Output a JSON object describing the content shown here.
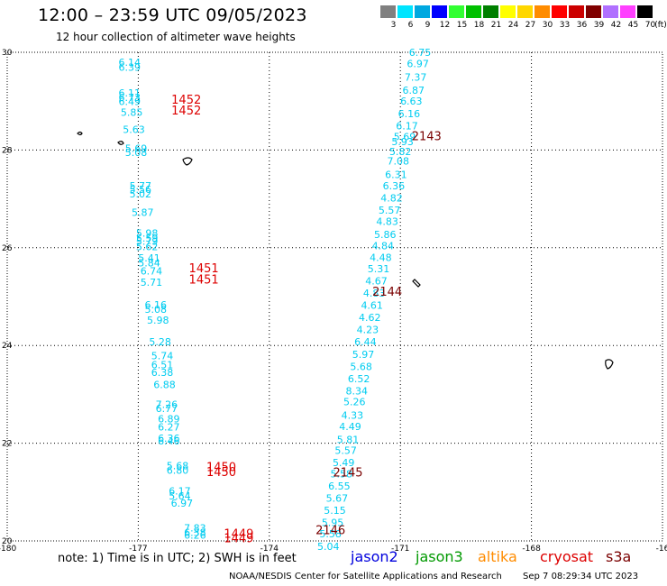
{
  "header": {
    "title": "12:00 – 23:59 UTC 09/05/2023",
    "subtitle": "12 hour collection of altimeter wave heights"
  },
  "colorbar": {
    "unit": "(ft)",
    "swatches": [
      {
        "color": "#808080",
        "label": "3"
      },
      {
        "color": "#00e5ff",
        "label": "6"
      },
      {
        "color": "#00a8e0",
        "label": "9"
      },
      {
        "color": "#0000ff",
        "label": "12"
      },
      {
        "color": "#32ff32",
        "label": "15"
      },
      {
        "color": "#00c000",
        "label": "18"
      },
      {
        "color": "#008000",
        "label": "21"
      },
      {
        "color": "#ffff00",
        "label": "24"
      },
      {
        "color": "#ffd700",
        "label": "27"
      },
      {
        "color": "#ff8c00",
        "label": "30"
      },
      {
        "color": "#ff0000",
        "label": "33"
      },
      {
        "color": "#cc0000",
        "label": "36"
      },
      {
        "color": "#800000",
        "label": "39"
      },
      {
        "color": "#b070ff",
        "label": "42"
      },
      {
        "color": "#ff40ff",
        "label": "45"
      },
      {
        "color": "#000000",
        "label": "70"
      }
    ]
  },
  "map": {
    "lon_ticks": [
      {
        "value": -180,
        "label": "-180"
      },
      {
        "value": -177,
        "label": "-177"
      },
      {
        "value": -174,
        "label": "-174"
      },
      {
        "value": -171,
        "label": "-171"
      },
      {
        "value": -168,
        "label": "-168"
      },
      {
        "value": -165,
        "label": "-16"
      }
    ],
    "lat_ticks": [
      {
        "value": 30,
        "label": "30"
      },
      {
        "value": 28,
        "label": "28"
      },
      {
        "value": 26,
        "label": "26"
      },
      {
        "value": 24,
        "label": "24"
      },
      {
        "value": 22,
        "label": "22"
      },
      {
        "value": 20,
        "label": "20"
      }
    ],
    "wave_color": "#00ccf0",
    "track_labels": [
      {
        "text": "1452",
        "lon": -175.9,
        "lat": 28.95,
        "color": "#dd0000"
      },
      {
        "text": "1452",
        "lon": -175.9,
        "lat": 28.73,
        "color": "#dd0000"
      },
      {
        "text": "1451",
        "lon": -175.5,
        "lat": 25.5,
        "color": "#dd0000"
      },
      {
        "text": "1451",
        "lon": -175.5,
        "lat": 25.27,
        "color": "#dd0000"
      },
      {
        "text": "1450",
        "lon": -175.1,
        "lat": 21.43,
        "color": "#dd0000"
      },
      {
        "text": "1450",
        "lon": -175.1,
        "lat": 21.33,
        "color": "#dd0000"
      },
      {
        "text": "1449",
        "lon": -174.7,
        "lat": 20.06,
        "color": "#dd0000"
      },
      {
        "text": "1449",
        "lon": -174.7,
        "lat": 19.97,
        "color": "#dd0000"
      },
      {
        "text": "2143",
        "lon": -170.4,
        "lat": 28.2,
        "color": "#7a0000"
      },
      {
        "text": "2144",
        "lon": -171.3,
        "lat": 25.02,
        "color": "#7a0000"
      },
      {
        "text": "2145",
        "lon": -172.2,
        "lat": 21.32,
        "color": "#7a0000"
      },
      {
        "text": "2146",
        "lon": -172.6,
        "lat": 20.14,
        "color": "#7a0000"
      }
    ],
    "wave_heights": [
      {
        "text": "6.14",
        "lon": -177.2,
        "lat": 29.72
      },
      {
        "text": "6.39",
        "lon": -177.2,
        "lat": 29.62
      },
      {
        "text": "6.11",
        "lon": -177.2,
        "lat": 29.1
      },
      {
        "text": "6.73",
        "lon": -177.2,
        "lat": 29.0
      },
      {
        "text": "6.49",
        "lon": -177.2,
        "lat": 28.92
      },
      {
        "text": "5.85",
        "lon": -177.15,
        "lat": 28.7
      },
      {
        "text": "5.63",
        "lon": -177.1,
        "lat": 28.35
      },
      {
        "text": "5.69",
        "lon": -177.05,
        "lat": 27.96
      },
      {
        "text": "5.08",
        "lon": -177.05,
        "lat": 27.88
      },
      {
        "text": "5.77",
        "lon": -176.95,
        "lat": 27.2
      },
      {
        "text": "5.56",
        "lon": -176.95,
        "lat": 27.12
      },
      {
        "text": "5.02",
        "lon": -176.95,
        "lat": 27.03
      },
      {
        "text": "5.87",
        "lon": -176.9,
        "lat": 26.65
      },
      {
        "text": "5.98",
        "lon": -176.8,
        "lat": 26.23
      },
      {
        "text": "5.59",
        "lon": -176.8,
        "lat": 26.13
      },
      {
        "text": "5.79",
        "lon": -176.8,
        "lat": 26.06
      },
      {
        "text": "5.62",
        "lon": -176.8,
        "lat": 25.95
      },
      {
        "text": "5.41",
        "lon": -176.75,
        "lat": 25.72
      },
      {
        "text": "5.84",
        "lon": -176.75,
        "lat": 25.62
      },
      {
        "text": "6.74",
        "lon": -176.7,
        "lat": 25.45
      },
      {
        "text": "5.71",
        "lon": -176.7,
        "lat": 25.22
      },
      {
        "text": "6.16",
        "lon": -176.6,
        "lat": 24.76
      },
      {
        "text": "5.08",
        "lon": -176.6,
        "lat": 24.67
      },
      {
        "text": "5.98",
        "lon": -176.55,
        "lat": 24.45
      },
      {
        "text": "5.28",
        "lon": -176.5,
        "lat": 24.0
      },
      {
        "text": "5.74",
        "lon": -176.45,
        "lat": 23.72
      },
      {
        "text": "6.51",
        "lon": -176.45,
        "lat": 23.53
      },
      {
        "text": "6.38",
        "lon": -176.45,
        "lat": 23.38
      },
      {
        "text": "6.88",
        "lon": -176.4,
        "lat": 23.13
      },
      {
        "text": "7.26",
        "lon": -176.35,
        "lat": 22.72
      },
      {
        "text": "6.77",
        "lon": -176.35,
        "lat": 22.64
      },
      {
        "text": "6.89",
        "lon": -176.3,
        "lat": 22.43
      },
      {
        "text": "6.27",
        "lon": -176.3,
        "lat": 22.26
      },
      {
        "text": "6.36",
        "lon": -176.3,
        "lat": 22.03
      },
      {
        "text": "6.46",
        "lon": -176.3,
        "lat": 21.97
      },
      {
        "text": "5.68",
        "lon": -176.1,
        "lat": 21.47
      },
      {
        "text": "6.80",
        "lon": -176.1,
        "lat": 21.37
      },
      {
        "text": "6.17",
        "lon": -176.05,
        "lat": 20.95
      },
      {
        "text": "5.64",
        "lon": -176.05,
        "lat": 20.85
      },
      {
        "text": "6.97",
        "lon": -176.0,
        "lat": 20.7
      },
      {
        "text": "7.83",
        "lon": -175.7,
        "lat": 20.19
      },
      {
        "text": "6.38",
        "lon": -175.7,
        "lat": 20.1
      },
      {
        "text": "6.26",
        "lon": -175.7,
        "lat": 20.05
      },
      {
        "text": "6.75",
        "lon": -170.55,
        "lat": 29.93
      },
      {
        "text": "6.97",
        "lon": -170.6,
        "lat": 29.7
      },
      {
        "text": "7.37",
        "lon": -170.65,
        "lat": 29.42
      },
      {
        "text": "6.87",
        "lon": -170.7,
        "lat": 29.15
      },
      {
        "text": "6.63",
        "lon": -170.75,
        "lat": 28.93
      },
      {
        "text": "6.16",
        "lon": -170.8,
        "lat": 28.67
      },
      {
        "text": "6.17",
        "lon": -170.85,
        "lat": 28.42
      },
      {
        "text": "5.69",
        "lon": -170.9,
        "lat": 28.2
      },
      {
        "text": "5.93",
        "lon": -170.95,
        "lat": 28.1
      },
      {
        "text": "5.82",
        "lon": -171.0,
        "lat": 27.9
      },
      {
        "text": "7.08",
        "lon": -171.05,
        "lat": 27.7
      },
      {
        "text": "6.31",
        "lon": -171.1,
        "lat": 27.43
      },
      {
        "text": "6.36",
        "lon": -171.15,
        "lat": 27.2
      },
      {
        "text": "4.82",
        "lon": -171.2,
        "lat": 26.95
      },
      {
        "text": "5.57",
        "lon": -171.25,
        "lat": 26.7
      },
      {
        "text": "4.83",
        "lon": -171.3,
        "lat": 26.47
      },
      {
        "text": "5.86",
        "lon": -171.35,
        "lat": 26.2
      },
      {
        "text": "4.84",
        "lon": -171.4,
        "lat": 25.97
      },
      {
        "text": "4.48",
        "lon": -171.45,
        "lat": 25.73
      },
      {
        "text": "5.31",
        "lon": -171.5,
        "lat": 25.5
      },
      {
        "text": "4.67",
        "lon": -171.55,
        "lat": 25.25
      },
      {
        "text": "4.83",
        "lon": -171.6,
        "lat": 25.0
      },
      {
        "text": "4.61",
        "lon": -171.65,
        "lat": 24.75
      },
      {
        "text": "4.62",
        "lon": -171.7,
        "lat": 24.5
      },
      {
        "text": "4.23",
        "lon": -171.75,
        "lat": 24.25
      },
      {
        "text": "6.44",
        "lon": -171.8,
        "lat": 24.0
      },
      {
        "text": "5.97",
        "lon": -171.85,
        "lat": 23.75
      },
      {
        "text": "5.68",
        "lon": -171.9,
        "lat": 23.5
      },
      {
        "text": "6.52",
        "lon": -171.95,
        "lat": 23.25
      },
      {
        "text": "8.34",
        "lon": -172.0,
        "lat": 23.0
      },
      {
        "text": "5.26",
        "lon": -172.05,
        "lat": 22.78
      },
      {
        "text": "4.33",
        "lon": -172.1,
        "lat": 22.5
      },
      {
        "text": "4.49",
        "lon": -172.15,
        "lat": 22.27
      },
      {
        "text": "5.81",
        "lon": -172.2,
        "lat": 22.0
      },
      {
        "text": "5.57",
        "lon": -172.25,
        "lat": 21.78
      },
      {
        "text": "5.49",
        "lon": -172.3,
        "lat": 21.53
      },
      {
        "text": "5.58",
        "lon": -172.35,
        "lat": 21.3
      },
      {
        "text": "6.55",
        "lon": -172.4,
        "lat": 21.05
      },
      {
        "text": "5.67",
        "lon": -172.45,
        "lat": 20.8
      },
      {
        "text": "5.15",
        "lon": -172.5,
        "lat": 20.55
      },
      {
        "text": "5.95",
        "lon": -172.55,
        "lat": 20.3
      },
      {
        "text": "5.58",
        "lon": -172.6,
        "lat": 20.07
      },
      {
        "text": "5.04",
        "lon": -172.65,
        "lat": 19.82
      }
    ]
  },
  "footer": {
    "note": "note: 1) Time is in UTC; 2) SWH is in feet",
    "satellites": [
      {
        "name": "jason2",
        "color": "#0000dd"
      },
      {
        "name": "jason3",
        "color": "#009900"
      },
      {
        "name": "altika",
        "color": "#ff8c00"
      },
      {
        "name": "cryosat",
        "color": "#dd0000"
      },
      {
        "name": "s3a",
        "color": "#7a0000"
      }
    ],
    "credit": "NOAA/NESDIS Center for Satellite Applications and Research",
    "timestamp": "Sep  7 08:29:34 UTC 2023"
  }
}
